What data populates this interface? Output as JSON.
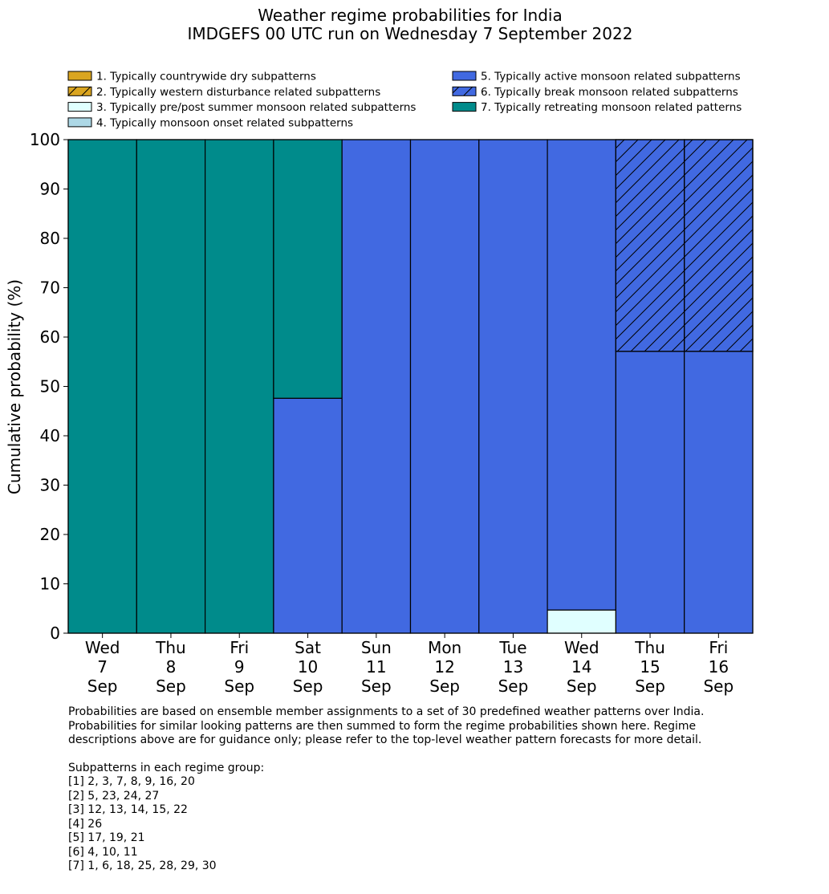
{
  "chart_data": {
    "type": "bar",
    "stacked": true,
    "title": "Weather regime probabilities for India",
    "subtitle": "IMDGEFS 00 UTC run on Wednesday 7 September 2022",
    "ylabel": "Cumulative probability (%)",
    "ylim": [
      0,
      100
    ],
    "yticks": [
      0,
      10,
      20,
      30,
      40,
      50,
      60,
      70,
      80,
      90,
      100
    ],
    "grid": false,
    "legend_position": "top",
    "categories": [
      [
        "Wed",
        "7",
        "Sep"
      ],
      [
        "Thu",
        "8",
        "Sep"
      ],
      [
        "Fri",
        "9",
        "Sep"
      ],
      [
        "Sat",
        "10",
        "Sep"
      ],
      [
        "Sun",
        "11",
        "Sep"
      ],
      [
        "Mon",
        "12",
        "Sep"
      ],
      [
        "Tue",
        "13",
        "Sep"
      ],
      [
        "Wed",
        "14",
        "Sep"
      ],
      [
        "Thu",
        "15",
        "Sep"
      ],
      [
        "Fri",
        "16",
        "Sep"
      ]
    ],
    "series": [
      {
        "name": "1. Typically countrywide dry subpatterns",
        "color": "#DAA520",
        "hatch": false,
        "values": [
          0,
          0,
          0,
          0,
          0,
          0,
          0,
          0,
          0,
          0
        ]
      },
      {
        "name": "2. Typically western disturbance related subpatterns",
        "color": "#DAA520",
        "hatch": true,
        "values": [
          0,
          0,
          0,
          0,
          0,
          0,
          0,
          0,
          0,
          0
        ]
      },
      {
        "name": "3. Typically pre/post summer monsoon related subpatterns",
        "color": "#E0FFFF",
        "hatch": false,
        "values": [
          0,
          0,
          0,
          0,
          0,
          0,
          0,
          4.7,
          0,
          0
        ]
      },
      {
        "name": "4. Typically monsoon onset related subpatterns",
        "color": "#ADD8E6",
        "hatch": false,
        "values": [
          0,
          0,
          0,
          0,
          0,
          0,
          0,
          0,
          0,
          0
        ]
      },
      {
        "name": "5. Typically active monsoon related subpatterns",
        "color": "#4169E1",
        "hatch": false,
        "values": [
          0,
          0,
          0,
          47.6,
          100,
          100,
          100,
          95.3,
          57.1,
          57.1
        ]
      },
      {
        "name": "6. Typically break monsoon related subpatterns",
        "color": "#4169E1",
        "hatch": true,
        "values": [
          0,
          0,
          0,
          0,
          0,
          0,
          0,
          0,
          42.9,
          42.9
        ]
      },
      {
        "name": "7. Typically retreating monsoon related patterns",
        "color": "#008B8B",
        "hatch": false,
        "values": [
          100,
          100,
          100,
          52.4,
          0,
          0,
          0,
          0,
          0,
          0
        ]
      }
    ]
  },
  "notes": {
    "paragraph": [
      "Probabilities are based on ensemble member assignments to a set of 30 predefined weather patterns over India.",
      "Probabilities for similar looking patterns are then summed to form the regime probabilities shown here. Regime",
      "descriptions above are for guidance only; please refer to the top-level weather pattern forecasts for more detail."
    ],
    "groups_heading": "Subpatterns in each regime group:",
    "groups": [
      "[1] 2, 3, 7, 8, 9, 16, 20",
      "[2] 5, 23, 24, 27",
      "[3] 12, 13, 14, 15, 22",
      "[4] 26",
      "[5] 17, 19, 21",
      "[6] 4, 10, 11",
      "[7] 1, 6, 18, 25, 28, 29, 30"
    ]
  }
}
